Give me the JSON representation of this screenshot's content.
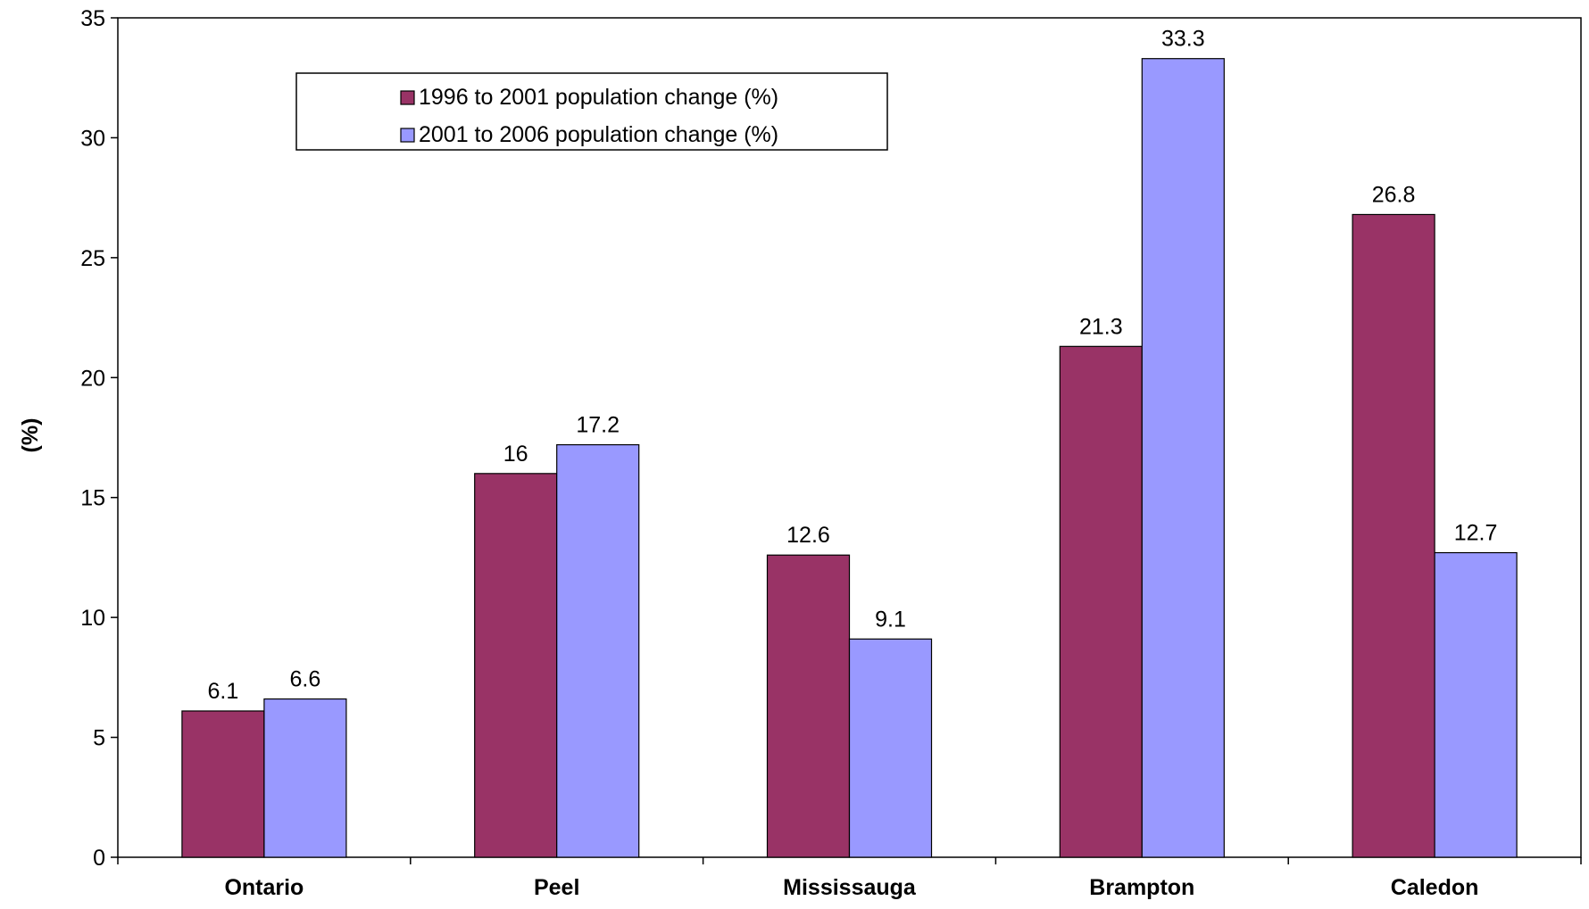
{
  "chart_data": {
    "type": "bar",
    "title": "",
    "xlabel": "",
    "ylabel": "(%)",
    "ylim": [
      0,
      35
    ],
    "yticks": [
      0,
      5,
      10,
      15,
      20,
      25,
      30,
      35
    ],
    "grid": false,
    "legend_position": "top-left",
    "categories": [
      "Ontario",
      "Peel",
      "Mississauga",
      "Brampton",
      "Caledon"
    ],
    "series": [
      {
        "name": "1996 to 2001 population change (%)",
        "values": [
          6.1,
          16,
          12.6,
          21.3,
          26.8
        ],
        "color": "#993366"
      },
      {
        "name": "2001 to 2006 population change (%)",
        "values": [
          6.6,
          17.2,
          9.1,
          33.3,
          12.7
        ],
        "color": "#9999FF"
      }
    ]
  }
}
